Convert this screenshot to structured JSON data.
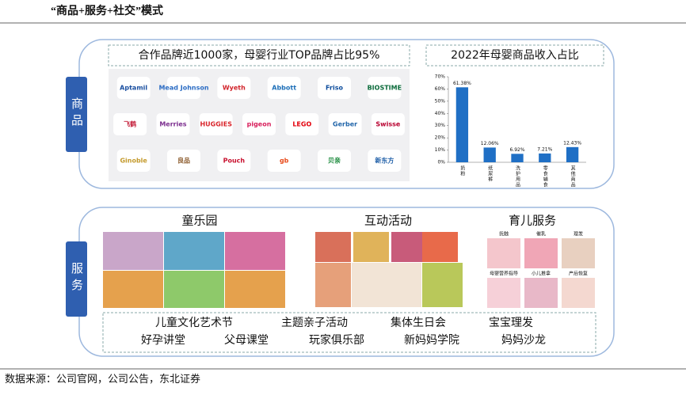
{
  "header": {
    "title": "“商品+服务+社交”模式"
  },
  "goods": {
    "label": "商品",
    "brands_title": "合作品牌近1000家，母婴行业TOP品牌占比95%",
    "brands": [
      [
        "Aptamil",
        "Mead Johnson",
        "Wyeth",
        "Abbott",
        "Friso",
        "BIOSTIME"
      ],
      [
        "飞鹤",
        "Merries",
        "HUGGIES",
        "pigeon",
        "LEGO",
        "Gerber",
        "Swisse"
      ],
      [
        "Ginoble",
        "良品",
        "Pouch",
        "gb",
        "贝亲",
        "新东方"
      ]
    ],
    "chart": {
      "type": "bar",
      "title": "2022年母婴商品收入占比",
      "categories": [
        "奶粉",
        "纸尿裤",
        "洗护用品",
        "零食辅食",
        "其他商品"
      ],
      "values": [
        61.38,
        12.06,
        6.92,
        7.21,
        12.43
      ],
      "value_labels": [
        "61.38%",
        "12.06%",
        "6.92%",
        "7.21%",
        "12.43%"
      ],
      "color": "#1f6fc5",
      "ylim": [
        0,
        70
      ],
      "yticks": [
        {
          "value": 0,
          "label": "0%"
        },
        {
          "value": 10,
          "label": "10%"
        },
        {
          "value": 20,
          "label": "20%"
        },
        {
          "value": 30,
          "label": "30%"
        },
        {
          "value": 40,
          "label": "40%"
        },
        {
          "value": 50,
          "label": "50%"
        },
        {
          "value": 60,
          "label": "60%"
        },
        {
          "value": 70,
          "label": "70%"
        }
      ]
    }
  },
  "services": {
    "label": "服务",
    "sections": [
      {
        "title": "童乐园"
      },
      {
        "title": "互动活动"
      },
      {
        "title": "育儿服务",
        "captions": [
          "抚触",
          "催乳",
          "理发",
          "母婴营养指导",
          "小儿推拿",
          "产后恢复"
        ]
      }
    ],
    "items": [
      [
        "儿童文化艺术节",
        "主题亲子活动",
        "集体生日会",
        "宝宝理发"
      ],
      [
        "好孕讲堂",
        "父母课堂",
        "玩家俱乐部",
        "新妈妈学院",
        "妈妈沙龙"
      ]
    ]
  },
  "footer": {
    "source": "数据来源：公司官网，公司公告，东北证券"
  }
}
